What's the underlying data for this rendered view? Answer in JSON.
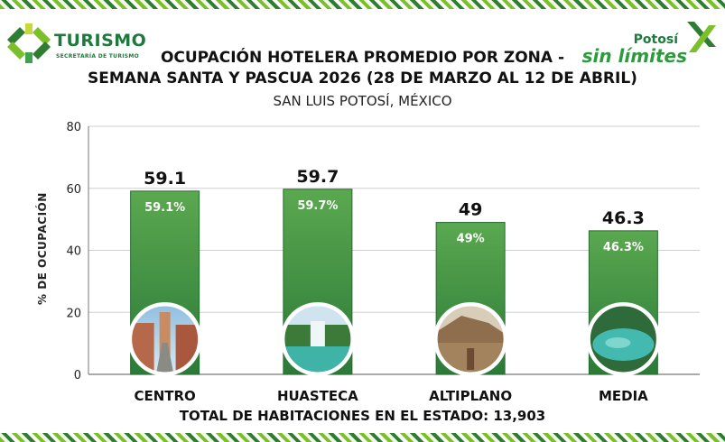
{
  "header": {
    "left_logo_title": "TURISMO",
    "left_logo_subtitle": "SECRETARÍA DE TURISMO",
    "right_logo_top": "Potosí",
    "right_logo_main": "sin límites"
  },
  "colors": {
    "bar_dark": "#2f7d3b",
    "bar_light": "#4e9f4a",
    "brand_green": "#1e7a3c",
    "accent_lime": "#7bbf2a"
  },
  "chart_data": {
    "type": "bar",
    "title_line1": "OCUPACIÓN HOTELERA PROMEDIO POR ZONA -",
    "title_line2": "SEMANA SANTA Y PASCUA 2026 (28 DE MARZO AL 12 DE ABRIL)",
    "subtitle": "SAN LUIS POTOSÍ, MÉXICO",
    "ylabel": "% DE OCUPACIÓN",
    "xlabel": "",
    "ylim": [
      0,
      80
    ],
    "yticks": [
      0,
      20,
      40,
      60,
      80
    ],
    "grid": true,
    "categories": [
      "CENTRO",
      "HUASTECA",
      "ALTIPLANO",
      "MEDIA"
    ],
    "values": [
      59.1,
      59.7,
      49,
      46.3
    ],
    "value_labels": [
      "59.1",
      "59.7",
      "49",
      "46.3"
    ],
    "inner_labels": [
      "59.1%",
      "59.7%",
      "49%",
      "46.3%"
    ],
    "photo_icons": [
      "colonial-street-icon",
      "waterfall-icon",
      "desert-village-icon",
      "river-pool-icon"
    ]
  },
  "footer": {
    "total_text": "TOTAL DE HABITACIONES EN EL ESTADO: 13,903"
  }
}
